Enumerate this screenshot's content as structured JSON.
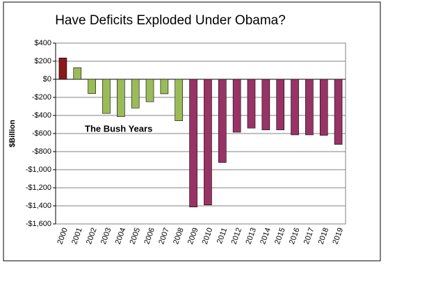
{
  "chart_data": {
    "type": "bar",
    "title": "Have Deficits Exploded Under Obama?",
    "y_label": "$Billion",
    "annotation": "The Bush Years",
    "categories": [
      "2000",
      "2001",
      "2002",
      "2003",
      "2004",
      "2005",
      "2006",
      "2007",
      "2008",
      "2009",
      "2010",
      "2011",
      "2012",
      "2013",
      "2014",
      "2015",
      "2016",
      "2017",
      "2018",
      "2019"
    ],
    "values": [
      236,
      128,
      -158,
      -378,
      -413,
      -318,
      -248,
      -161,
      -459,
      -1413,
      -1390,
      -920,
      -585,
      -540,
      -560,
      -560,
      -615,
      -615,
      -620,
      -720
    ],
    "colors": [
      "#8b1a1a",
      "#9bbb59",
      "#9bbb59",
      "#9bbb59",
      "#9bbb59",
      "#9bbb59",
      "#9bbb59",
      "#9bbb59",
      "#9bbb59",
      "#993366",
      "#993366",
      "#993366",
      "#993366",
      "#993366",
      "#993366",
      "#993366",
      "#993366",
      "#993366",
      "#993366",
      "#993366"
    ],
    "ylim": [
      -1600,
      400
    ],
    "yticks": [
      {
        "value": 400,
        "label": "$400"
      },
      {
        "value": 200,
        "label": "$200"
      },
      {
        "value": 0,
        "label": "$0"
      },
      {
        "value": -200,
        "label": "-$200"
      },
      {
        "value": -400,
        "label": "-$400"
      },
      {
        "value": -600,
        "label": "-$600"
      },
      {
        "value": -800,
        "label": "-$800"
      },
      {
        "value": -1000,
        "label": "-$1,000"
      },
      {
        "value": -1200,
        "label": "-$1,200"
      },
      {
        "value": -1400,
        "label": "-$1,400"
      },
      {
        "value": -1600,
        "label": "-$1,600"
      }
    ],
    "grid": true
  }
}
